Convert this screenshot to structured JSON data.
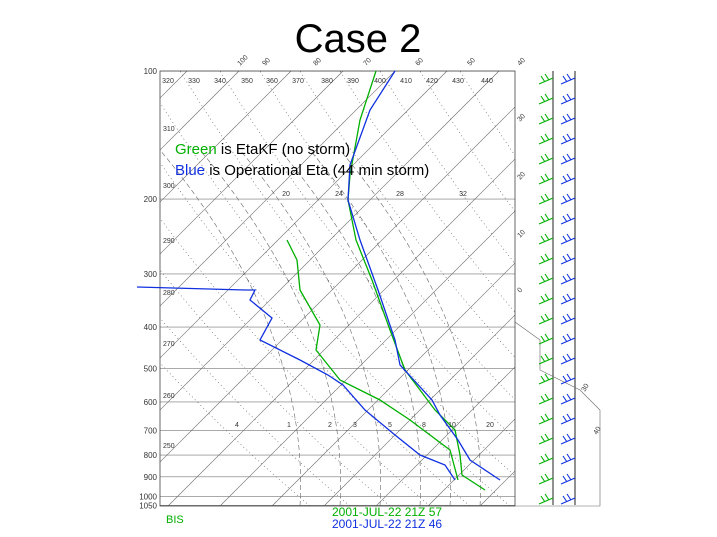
{
  "title": "Case 2",
  "legend": [
    {
      "color_word": "Green",
      "text": " is EtaKF (no storm)"
    },
    {
      "color_word": "Blue",
      "text": " is Operational Eta (44 min storm)"
    }
  ],
  "pressure_labels": [
    100,
    200,
    300,
    400,
    500,
    600,
    700,
    800,
    900,
    1000,
    1050
  ],
  "theta_labels": [
    320,
    330,
    340,
    350,
    360,
    370,
    380,
    390,
    400,
    410,
    420,
    430,
    440
  ],
  "isotherm_labels_top": [
    100,
    90,
    80,
    70,
    60,
    50,
    40
  ],
  "isotherm_labels_right": [
    30,
    20,
    10,
    0
  ],
  "adiabat_labels": [
    310,
    300,
    290,
    280,
    270,
    260,
    250
  ],
  "mixing_labels_top": [
    20,
    24,
    28,
    32
  ],
  "mixing_labels_bottom": [
    4,
    1,
    2,
    3,
    5,
    8,
    10,
    20
  ],
  "wind_labels": [
    30,
    40
  ],
  "station": "BIS",
  "timestamps": [
    "2001-JUL-22 21Z 57",
    "2001-JUL-22 21Z 46"
  ]
}
